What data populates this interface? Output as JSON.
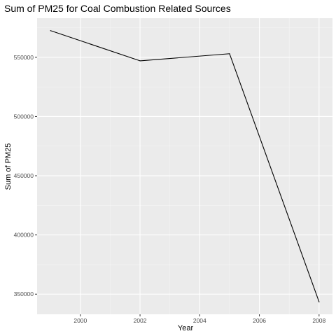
{
  "chart_data": {
    "type": "line",
    "title": "Sum of PM25 for Coal Combustion Related Sources",
    "xlabel": "Year",
    "ylabel": "Sum of PM25",
    "x": [
      1999,
      2002,
      2005,
      2008
    ],
    "series": [
      {
        "values": [
          572500,
          547000,
          553000,
          343500
        ]
      }
    ],
    "xlim": [
      1998.55,
      2008.45
    ],
    "ylim": [
      333000,
      583000
    ],
    "x_ticks": [
      2000,
      2002,
      2004,
      2006,
      2008
    ],
    "y_ticks": [
      350000,
      400000,
      450000,
      500000,
      550000
    ],
    "grid": true,
    "colors": {
      "panel_background": "#ebebeb",
      "grid_major": "#ffffff",
      "grid_minor": "#f5f5f5",
      "line": "#000000",
      "tick_mark": "#333333",
      "tick_label": "#4d4d4d"
    }
  }
}
